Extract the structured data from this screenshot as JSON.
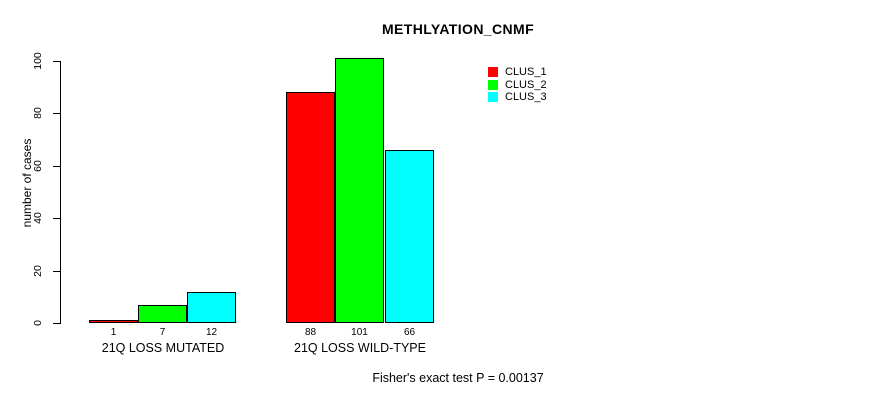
{
  "chart_data": {
    "type": "bar",
    "title": "METHLYATION_CNMF",
    "ylabel": "number of cases",
    "xlabel": "",
    "categories": [
      "21Q LOSS MUTATED",
      "21Q LOSS WILD-TYPE"
    ],
    "series": [
      {
        "name": "CLUS_1",
        "color": "#FF0000",
        "values": [
          1,
          88
        ]
      },
      {
        "name": "CLUS_2",
        "color": "#00FF00",
        "values": [
          7,
          101
        ]
      },
      {
        "name": "CLUS_3",
        "color": "#00FFFF",
        "values": [
          12,
          66
        ]
      }
    ],
    "yticks": [
      0,
      20,
      40,
      60,
      80,
      100
    ],
    "ylim": [
      0,
      101
    ],
    "grid": false,
    "bar_value_labels_shown": true,
    "legend_position": "top-right",
    "legend": [
      "CLUS_1",
      "CLUS_2",
      "CLUS_3"
    ],
    "annotation": "Fisher's exact test P = 0.00137",
    "colors": {
      "bar_border": "#000000",
      "axis": "#000000",
      "text": "#000000",
      "background": "#FFFFFF"
    }
  }
}
